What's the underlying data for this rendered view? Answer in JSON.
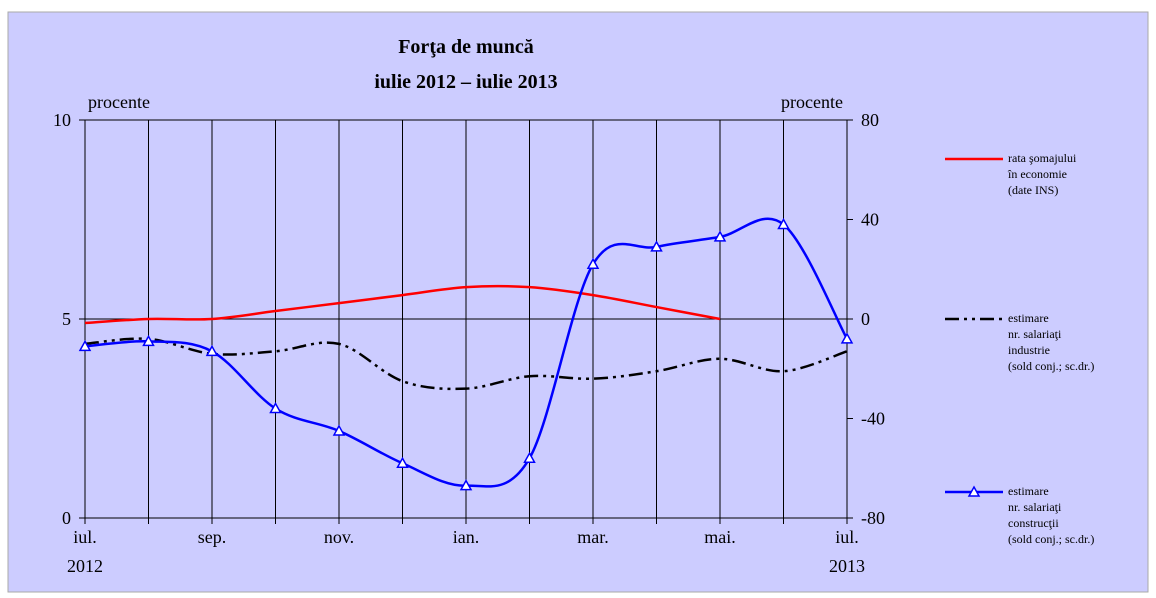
{
  "chart_data": {
    "type": "line",
    "title": "Forţa de muncă",
    "subtitle": "iulie 2012 – iulie 2013",
    "y_label": "procente",
    "y2_label": "procente",
    "categories": [
      "iul.",
      null,
      "sep.",
      null,
      "nov.",
      null,
      "ian.",
      null,
      "mar.",
      null,
      "mai.",
      null,
      "iul."
    ],
    "category_sublabels": [
      "2012",
      null,
      null,
      null,
      null,
      null,
      null,
      null,
      null,
      null,
      null,
      null,
      "2013"
    ],
    "ylim": [
      0,
      10
    ],
    "yticks": [
      0,
      5,
      10
    ],
    "y2lim": [
      -80,
      80
    ],
    "y2ticks": [
      -80,
      -40,
      0,
      40,
      80
    ],
    "grid": "x",
    "y2_zero_line": true,
    "series": [
      {
        "name": "rata şomajului\nîn economie\n(date INS)",
        "color": "#ff0000",
        "dash": "solid",
        "marker": "none",
        "values": [
          4.9,
          5.0,
          5.0,
          5.2,
          5.4,
          5.6,
          5.8,
          5.8,
          5.6,
          5.3,
          5.0,
          null,
          null
        ]
      },
      {
        "name": "estimare\nnr. salariaţi\nindustrie\n(sold conj.; sc.dr.)",
        "color": "#000000",
        "dash": "dashdotdot",
        "marker": "none",
        "axis": "y2",
        "values": [
          -10,
          -8,
          -14,
          -13,
          -10,
          -25,
          -28,
          -23,
          -24,
          -21,
          -16,
          -21,
          -13
        ]
      },
      {
        "name": "estimare\nnr. salariaţi\nconstrucţii\n(sold conj.; sc.dr.)",
        "color": "#0000ff",
        "dash": "solid",
        "marker": "triangle",
        "axis": "y2",
        "values": [
          -11,
          -9,
          -13,
          -36,
          -45,
          -58,
          -67,
          -56,
          22,
          29,
          33,
          38,
          -8
        ]
      }
    ]
  }
}
